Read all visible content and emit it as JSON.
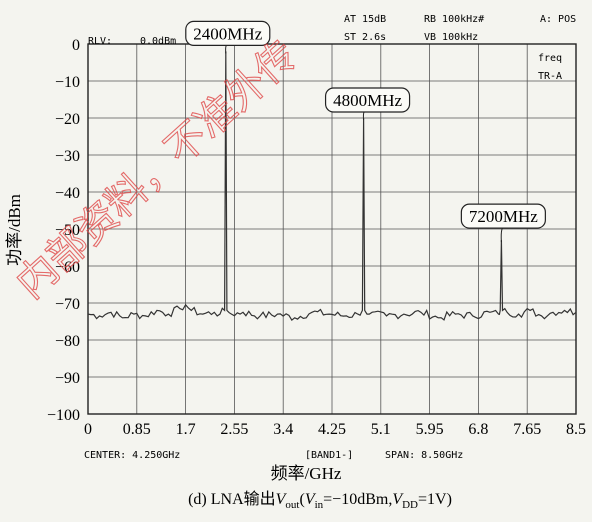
{
  "header": {
    "ref_level": "RLV:",
    "ref_value": "0.0dBm",
    "attenuation": "AT 15dB",
    "sweep_time": "ST 2.6s",
    "rbw": "RB 100kHz#",
    "vbw": "VB 100kHz",
    "detector": "A: POS",
    "mode1": "freq",
    "mode2": "TR-A"
  },
  "footer": {
    "center": "CENTER: 4.250GHz",
    "band": "[BAND1-]",
    "span": "SPAN: 8.50GHz",
    "caption": "(d) LNA输出V_out(V_in=−10dBm, V_DD=1V)"
  },
  "watermark": "内部资料，不准外传",
  "chart_data": {
    "type": "line",
    "xlabel": "频率/GHz",
    "ylabel": "功率/dBm",
    "xlim": [
      0,
      8.5
    ],
    "ylim": [
      -100,
      0
    ],
    "x_ticks": [
      "0",
      "0.85",
      "1.7",
      "2.55",
      "3.4",
      "4.25",
      "5.1",
      "5.95",
      "6.8",
      "7.65",
      "8.5"
    ],
    "y_ticks": [
      "0",
      "−10",
      "−20",
      "−30",
      "−40",
      "−50",
      "−60",
      "−70",
      "−80",
      "−90",
      "−100"
    ],
    "grid": true,
    "noise_floor_dBm": -73,
    "series": [
      {
        "x": [
          0,
          0.2,
          0.4,
          0.6,
          0.8,
          1.0,
          1.2,
          1.4,
          1.6,
          1.7,
          1.8,
          2.0,
          2.2,
          2.3,
          2.38,
          2.4,
          2.42,
          2.5,
          2.7,
          3.0,
          3.3,
          3.6,
          3.9,
          4.2,
          4.5,
          4.7,
          4.78,
          4.8,
          4.82,
          4.9,
          5.2,
          5.5,
          5.8,
          6.1,
          6.4,
          6.7,
          7.0,
          7.15,
          7.18,
          7.2,
          7.22,
          7.3,
          7.5,
          7.7,
          7.9,
          8.1,
          8.3,
          8.5
        ],
        "y": [
          -73,
          -73.5,
          -72.5,
          -74,
          -73,
          -73.5,
          -72,
          -73,
          -71.5,
          -70.5,
          -72,
          -73,
          -72.5,
          -73,
          -72,
          -2,
          -72,
          -73,
          -72.5,
          -73.5,
          -73,
          -74,
          -72.5,
          -73,
          -73.5,
          -73,
          -72,
          -20,
          -72,
          -73,
          -73.5,
          -73,
          -72.5,
          -74,
          -73,
          -73.5,
          -72.5,
          -73,
          -72,
          -53,
          -72,
          -72.5,
          -73,
          -72,
          -73.5,
          -72.5,
          -72,
          -72.5
        ]
      }
    ],
    "annotations": [
      {
        "text": "2400MHz",
        "x": 2.4,
        "y": -2
      },
      {
        "text": "4800MHz",
        "x": 4.8,
        "y": -20
      },
      {
        "text": "7200MHz",
        "x": 7.2,
        "y": -53
      }
    ]
  }
}
